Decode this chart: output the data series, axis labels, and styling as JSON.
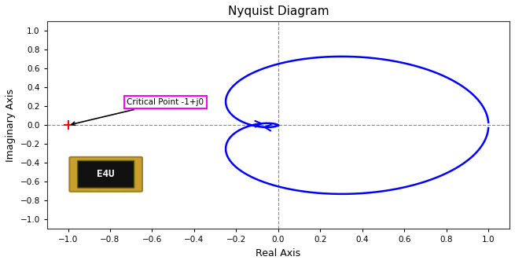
{
  "title": "Nyquist Diagram",
  "xlabel": "Real Axis",
  "ylabel": "Imaginary Axis",
  "xlim": [
    -1.1,
    1.1
  ],
  "ylim": [
    -1.1,
    1.1
  ],
  "xticks": [
    -1,
    -0.8,
    -0.6,
    -0.4,
    -0.2,
    0,
    0.2,
    0.4,
    0.6,
    0.8,
    1
  ],
  "yticks": [
    -1,
    -0.8,
    -0.6,
    -0.4,
    -0.2,
    0,
    0.2,
    0.4,
    0.6,
    0.8,
    1
  ],
  "line_color": "#0000FF",
  "line_width": 1.8,
  "critical_point": [
    -1,
    0
  ],
  "critical_label": "Critical Point -1+j0",
  "background_color": "#FFFFFF",
  "grid_color": "#888888",
  "annotation_box_color": "#FF00FF",
  "title_fontsize": 11,
  "label_fontsize": 9
}
